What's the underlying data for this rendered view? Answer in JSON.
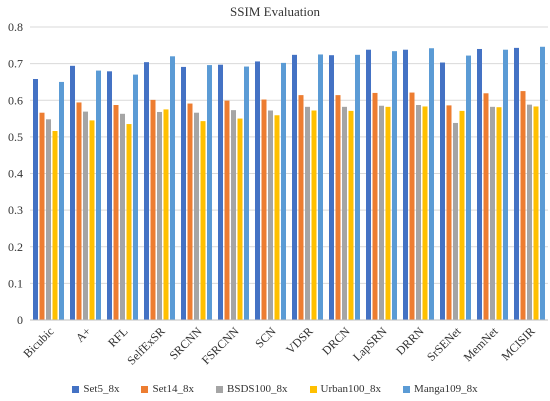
{
  "chart_data": {
    "type": "bar",
    "title": "SSIM Evaluation",
    "xlabel": "",
    "ylabel": "",
    "ylim": [
      0,
      0.8
    ],
    "yticks": [
      0,
      0.1,
      0.2,
      0.3,
      0.4,
      0.5,
      0.6,
      0.7,
      0.8
    ],
    "grid": true,
    "legend": "bottom",
    "categories": [
      "Bicubic",
      "A+",
      "RFL",
      "SelfExSR",
      "SRCNN",
      "FSRCNN",
      "SCN",
      "VDSR",
      "DRCN",
      "LapSRN",
      "DRRN",
      "SrSENet",
      "MemNet",
      "MCISIR"
    ],
    "series": [
      {
        "name": "Set5_8x",
        "color": "#4472C4",
        "values": [
          0.658,
          0.694,
          0.679,
          0.704,
          0.691,
          0.697,
          0.706,
          0.724,
          0.723,
          0.738,
          0.738,
          0.703,
          0.74,
          0.743
        ]
      },
      {
        "name": "Set14_8x",
        "color": "#ED7D31",
        "values": [
          0.566,
          0.594,
          0.587,
          0.601,
          0.591,
          0.599,
          0.602,
          0.614,
          0.614,
          0.62,
          0.621,
          0.586,
          0.619,
          0.625
        ]
      },
      {
        "name": "BSDS100_8x",
        "color": "#A5A5A5",
        "values": [
          0.548,
          0.569,
          0.563,
          0.568,
          0.566,
          0.573,
          0.572,
          0.582,
          0.582,
          0.585,
          0.587,
          0.538,
          0.582,
          0.588
        ]
      },
      {
        "name": "Urban100_8x",
        "color": "#FFC000",
        "values": [
          0.516,
          0.545,
          0.535,
          0.575,
          0.543,
          0.55,
          0.559,
          0.572,
          0.571,
          0.582,
          0.583,
          0.571,
          0.581,
          0.583
        ]
      },
      {
        "name": "Manga109_8x",
        "color": "#5B9BD5",
        "values": [
          0.65,
          0.681,
          0.67,
          0.72,
          0.696,
          0.692,
          0.702,
          0.725,
          0.724,
          0.734,
          0.742,
          0.722,
          0.738,
          0.746
        ]
      }
    ]
  }
}
